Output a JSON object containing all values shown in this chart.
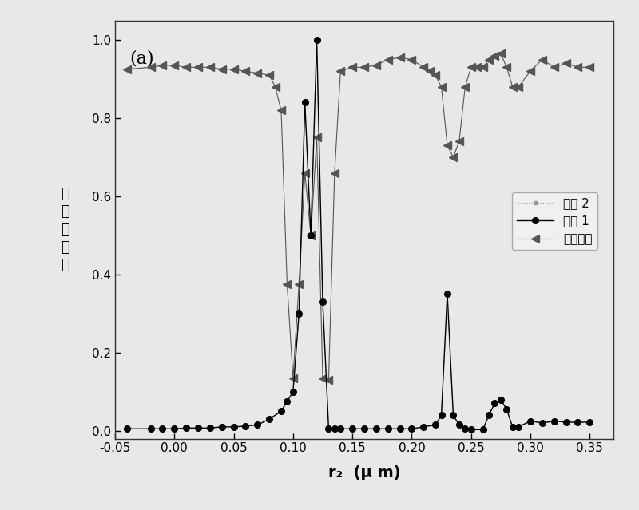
{
  "title_label": "(a)",
  "xlabel": "r₂  (μ m)",
  "ylabel": "归\n一\n化\n强\n度",
  "xlim": [
    -0.05,
    0.37
  ],
  "ylim": [
    -0.02,
    1.05
  ],
  "xticks": [
    -0.05,
    0.0,
    0.05,
    0.1,
    0.15,
    0.2,
    0.25,
    0.3,
    0.35
  ],
  "yticks": [
    0.0,
    0.2,
    0.4,
    0.6,
    0.8,
    1.0
  ],
  "port1_x": [
    -0.04,
    -0.02,
    -0.01,
    0.0,
    0.01,
    0.02,
    0.03,
    0.04,
    0.05,
    0.06,
    0.07,
    0.08,
    0.09,
    0.095,
    0.1,
    0.105,
    0.11,
    0.115,
    0.12,
    0.125,
    0.13,
    0.135,
    0.14,
    0.15,
    0.16,
    0.17,
    0.18,
    0.19,
    0.2,
    0.21,
    0.22,
    0.225,
    0.23,
    0.235,
    0.24,
    0.245,
    0.25,
    0.26,
    0.265,
    0.27,
    0.275,
    0.28,
    0.285,
    0.29,
    0.3,
    0.31,
    0.32,
    0.33,
    0.34,
    0.35
  ],
  "port1_y": [
    0.005,
    0.005,
    0.005,
    0.005,
    0.007,
    0.007,
    0.007,
    0.01,
    0.01,
    0.012,
    0.015,
    0.03,
    0.05,
    0.075,
    0.1,
    0.3,
    0.84,
    0.5,
    1.0,
    0.33,
    0.005,
    0.005,
    0.005,
    0.005,
    0.005,
    0.005,
    0.005,
    0.005,
    0.005,
    0.01,
    0.015,
    0.04,
    0.35,
    0.04,
    0.015,
    0.005,
    0.003,
    0.003,
    0.04,
    0.07,
    0.08,
    0.055,
    0.01,
    0.01,
    0.025,
    0.02,
    0.025,
    0.022,
    0.022,
    0.022
  ],
  "port2_x": [
    -0.04,
    -0.02,
    -0.01,
    0.0,
    0.01,
    0.02,
    0.03,
    0.04,
    0.05,
    0.06,
    0.07,
    0.08,
    0.09,
    0.095,
    0.1,
    0.105,
    0.11,
    0.115,
    0.12,
    0.125,
    0.13,
    0.135,
    0.14,
    0.15,
    0.16,
    0.17,
    0.18,
    0.19,
    0.2,
    0.21,
    0.22,
    0.225,
    0.23,
    0.235,
    0.24,
    0.245,
    0.25,
    0.26,
    0.265,
    0.27,
    0.275,
    0.28,
    0.285,
    0.29,
    0.3,
    0.31,
    0.32,
    0.33,
    0.34,
    0.35
  ],
  "port2_y": [
    0.005,
    0.005,
    0.005,
    0.005,
    0.007,
    0.007,
    0.007,
    0.01,
    0.01,
    0.012,
    0.015,
    0.03,
    0.05,
    0.075,
    0.1,
    0.3,
    0.84,
    0.5,
    1.0,
    0.33,
    0.005,
    0.005,
    0.005,
    0.005,
    0.005,
    0.005,
    0.005,
    0.005,
    0.005,
    0.01,
    0.015,
    0.04,
    0.35,
    0.04,
    0.015,
    0.005,
    0.003,
    0.003,
    0.04,
    0.07,
    0.08,
    0.055,
    0.01,
    0.01,
    0.025,
    0.02,
    0.025,
    0.022,
    0.022,
    0.022
  ],
  "loss_x": [
    -0.04,
    -0.02,
    -0.01,
    0.0,
    0.01,
    0.02,
    0.03,
    0.04,
    0.05,
    0.06,
    0.07,
    0.08,
    0.085,
    0.09,
    0.095,
    0.1,
    0.105,
    0.11,
    0.115,
    0.12,
    0.125,
    0.13,
    0.135,
    0.14,
    0.15,
    0.16,
    0.17,
    0.18,
    0.19,
    0.2,
    0.21,
    0.215,
    0.22,
    0.225,
    0.23,
    0.235,
    0.24,
    0.245,
    0.25,
    0.255,
    0.26,
    0.265,
    0.27,
    0.275,
    0.28,
    0.285,
    0.29,
    0.3,
    0.31,
    0.32,
    0.33,
    0.34,
    0.35
  ],
  "loss_y": [
    0.925,
    0.93,
    0.935,
    0.935,
    0.93,
    0.93,
    0.93,
    0.925,
    0.925,
    0.92,
    0.915,
    0.91,
    0.88,
    0.82,
    0.375,
    0.135,
    0.375,
    0.66,
    0.5,
    0.75,
    0.135,
    0.13,
    0.66,
    0.92,
    0.93,
    0.93,
    0.935,
    0.95,
    0.955,
    0.95,
    0.93,
    0.92,
    0.91,
    0.88,
    0.73,
    0.7,
    0.74,
    0.88,
    0.93,
    0.93,
    0.93,
    0.95,
    0.96,
    0.965,
    0.93,
    0.88,
    0.88,
    0.92,
    0.95,
    0.93,
    0.94,
    0.93,
    0.93
  ],
  "port1_color": "#000000",
  "port2_color": "#999999",
  "loss_color": "#555555",
  "bg_color": "#e8e8e8",
  "plot_bg_color": "#e8e8e8",
  "legend_labels": [
    "端口 1",
    "端口 2",
    "能量损失"
  ]
}
